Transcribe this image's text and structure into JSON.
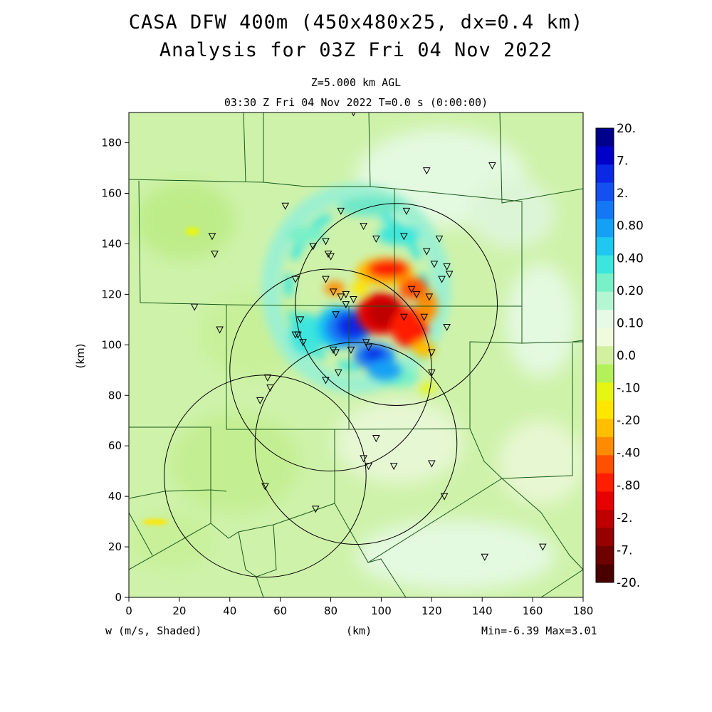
{
  "title": {
    "line1": "CASA DFW 400m (450x480x25, dx=0.4 km)",
    "line2": "Analysis for 03Z Fri 04 Nov 2022"
  },
  "subtitle": {
    "level": "Z=5.000 km AGL",
    "time": "03:30 Z Fri 04 Nov 2022   T=0.0 s (0:00:00)"
  },
  "footer": {
    "field": "w (m/s, Shaded)",
    "xunit": "(km)",
    "minmax": "Min=-6.39 Max=3.01"
  },
  "chart_data": {
    "type": "heatmap",
    "variable": "w (m/s)",
    "xlabel": "(km)",
    "ylabel": "(km)",
    "xlim": [
      0,
      180
    ],
    "ylim": [
      0,
      192
    ],
    "xticks": [
      0,
      20,
      40,
      60,
      80,
      100,
      120,
      140,
      160,
      180
    ],
    "yticks": [
      0,
      20,
      40,
      60,
      80,
      100,
      120,
      140,
      160,
      180
    ],
    "min": -6.39,
    "max": 3.01,
    "colorbar": {
      "labels": [
        "20.",
        "7.",
        "2.",
        "0.80",
        "0.40",
        "0.20",
        "0.10",
        "0.0",
        "-.10",
        "-.20",
        "-.40",
        "-.80",
        "-2.",
        "-7.",
        "-20."
      ],
      "colors": [
        "#00008c",
        "#0000c8",
        "#0a28e6",
        "#1450f0",
        "#1478f5",
        "#14a0f5",
        "#1ec8f0",
        "#3ce6dc",
        "#78f0c8",
        "#b4f5d2",
        "#e6fae6",
        "#f0fadc",
        "#d2f0a0",
        "#b4f05a",
        "#e6f514",
        "#ffe600",
        "#ffbe00",
        "#ff8c00",
        "#ff5000",
        "#ff1e00",
        "#e60000",
        "#be0000",
        "#960000",
        "#6e0000",
        "#4b0000"
      ]
    },
    "radar_rings": [
      {
        "cx": 106,
        "cy": 116,
        "r": 40
      },
      {
        "cx": 80,
        "cy": 90,
        "r": 40
      },
      {
        "cx": 90,
        "cy": 61,
        "r": 40
      },
      {
        "cx": 54,
        "cy": 48,
        "r": 40
      }
    ],
    "stations": [
      [
        89,
        192
      ],
      [
        118,
        169
      ],
      [
        144,
        171
      ],
      [
        62,
        155
      ],
      [
        84,
        153
      ],
      [
        110,
        153
      ],
      [
        33,
        143
      ],
      [
        34,
        136
      ],
      [
        93,
        147
      ],
      [
        98,
        142
      ],
      [
        109,
        143
      ],
      [
        123,
        142
      ],
      [
        78,
        141
      ],
      [
        73,
        139
      ],
      [
        79,
        136
      ],
      [
        80,
        135
      ],
      [
        118,
        137
      ],
      [
        121,
        132
      ],
      [
        126,
        131
      ],
      [
        127,
        128
      ],
      [
        124,
        126
      ],
      [
        66,
        126
      ],
      [
        78,
        126
      ],
      [
        81,
        121
      ],
      [
        86,
        120
      ],
      [
        89,
        118
      ],
      [
        112,
        122
      ],
      [
        114,
        120
      ],
      [
        119,
        119
      ],
      [
        84,
        119
      ],
      [
        86,
        116
      ],
      [
        82,
        112
      ],
      [
        109,
        111
      ],
      [
        117,
        111
      ],
      [
        68,
        110
      ],
      [
        26,
        115
      ],
      [
        36,
        106
      ],
      [
        67,
        104
      ],
      [
        66,
        104
      ],
      [
        69,
        101
      ],
      [
        126,
        107
      ],
      [
        81,
        98
      ],
      [
        82,
        97
      ],
      [
        88,
        98
      ],
      [
        94,
        101
      ],
      [
        95,
        99
      ],
      [
        120,
        97
      ],
      [
        83,
        89
      ],
      [
        78,
        86
      ],
      [
        120,
        89
      ],
      [
        55,
        87
      ],
      [
        56,
        83
      ],
      [
        52,
        78
      ],
      [
        98,
        63
      ],
      [
        93,
        55
      ],
      [
        95,
        52
      ],
      [
        105,
        52
      ],
      [
        120,
        53
      ],
      [
        54,
        44
      ],
      [
        74,
        35
      ],
      [
        125,
        40
      ],
      [
        141,
        16
      ],
      [
        164,
        20
      ]
    ],
    "features": [
      {
        "name": "updraft core",
        "cx": 103,
        "cy": 113,
        "peak_w": 3.01
      },
      {
        "name": "downdraft core",
        "cx": 88,
        "cy": 105,
        "peak_w": -6.39
      }
    ]
  },
  "colors": {
    "background": "#ccf0a8",
    "county_lines": "#1a5a1a",
    "rings": "#000000"
  }
}
